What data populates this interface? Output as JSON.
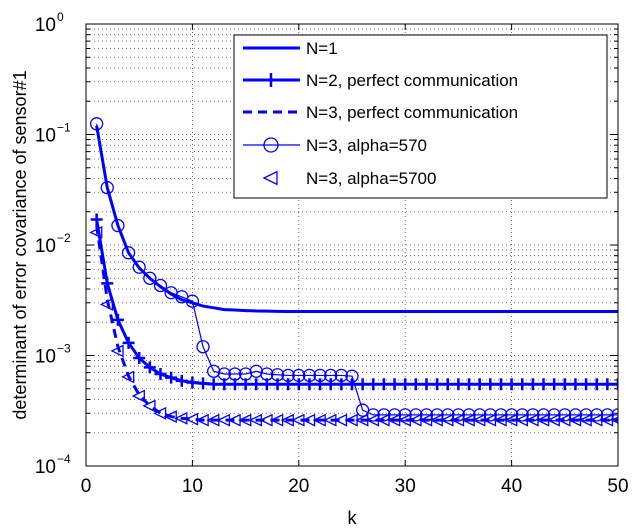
{
  "chart_data": {
    "type": "line",
    "xlabel": "k",
    "ylabel": "determinant of error covariance of sensor#1",
    "xlim": [
      0,
      50
    ],
    "ylim": [
      0.0001,
      1
    ],
    "yscale": "log",
    "grid": true,
    "legend_position": "top-right",
    "x_ticks": [
      "0",
      "10",
      "20",
      "30",
      "40",
      "50"
    ],
    "y_tick_base": "10",
    "y_tick_exponents": [
      "−4",
      "−3",
      "−2",
      "−1",
      "0"
    ],
    "color": "#0000ff",
    "x": [
      1,
      2,
      3,
      4,
      5,
      6,
      7,
      8,
      9,
      10,
      11,
      12,
      13,
      14,
      15,
      16,
      17,
      18,
      19,
      20,
      21,
      22,
      23,
      24,
      25,
      26,
      27,
      28,
      29,
      30,
      31,
      32,
      33,
      34,
      35,
      36,
      37,
      38,
      39,
      40,
      41,
      42,
      43,
      44,
      45,
      46,
      47,
      48,
      49,
      50
    ],
    "series": [
      {
        "name": "N=1",
        "style": "solid-thick",
        "values": [
          0.12,
          0.033,
          0.015,
          0.0085,
          0.0062,
          0.005,
          0.0042,
          0.0036,
          0.0032,
          0.003,
          0.0028,
          0.0027,
          0.0026,
          0.00258,
          0.00255,
          0.00253,
          0.00252,
          0.00251,
          0.0025,
          0.0025,
          0.0025,
          0.0025,
          0.0025,
          0.0025,
          0.0025,
          0.0025,
          0.0025,
          0.0025,
          0.0025,
          0.0025,
          0.0025,
          0.0025,
          0.0025,
          0.0025,
          0.0025,
          0.0025,
          0.0025,
          0.0025,
          0.0025,
          0.0025,
          0.0025,
          0.0025,
          0.0025,
          0.0025,
          0.0025,
          0.0025,
          0.0025,
          0.0025,
          0.0025,
          0.0025
        ]
      },
      {
        "name": "N=2, perfect communication",
        "style": "solid-plus",
        "values": [
          0.017,
          0.0045,
          0.0021,
          0.0013,
          0.00095,
          0.00078,
          0.00068,
          0.00063,
          0.00059,
          0.00057,
          0.00056,
          0.00055,
          0.00055,
          0.00055,
          0.00055,
          0.00055,
          0.00055,
          0.00055,
          0.00055,
          0.00055,
          0.00055,
          0.00055,
          0.00055,
          0.00055,
          0.00055,
          0.00055,
          0.00055,
          0.00055,
          0.00055,
          0.00055,
          0.00055,
          0.00055,
          0.00055,
          0.00055,
          0.00055,
          0.00055,
          0.00055,
          0.00055,
          0.00055,
          0.00055,
          0.00055,
          0.00055,
          0.00055,
          0.00055,
          0.00055,
          0.00055,
          0.00055,
          0.00055,
          0.00055,
          0.00055
        ]
      },
      {
        "name": "N=3, perfect communication",
        "style": "dashed",
        "values": [
          0.015,
          0.0032,
          0.0012,
          0.00065,
          0.00044,
          0.00035,
          0.0003,
          0.00028,
          0.00027,
          0.000265,
          0.00026,
          0.00026,
          0.00026,
          0.00026,
          0.00026,
          0.00026,
          0.00026,
          0.00026,
          0.00026,
          0.00026,
          0.00026,
          0.00026,
          0.00026,
          0.00026,
          0.00026,
          0.00026,
          0.00026,
          0.00026,
          0.00026,
          0.00026,
          0.00026,
          0.00026,
          0.00026,
          0.00026,
          0.00026,
          0.00026,
          0.00026,
          0.00026,
          0.00026,
          0.00026,
          0.00026,
          0.00026,
          0.00026,
          0.00026,
          0.00026,
          0.00026,
          0.00026,
          0.00026,
          0.00026,
          0.00026
        ]
      },
      {
        "name": "N=3, alpha=570",
        "style": "solid-circle",
        "values": [
          0.125,
          0.033,
          0.015,
          0.0085,
          0.0063,
          0.005,
          0.0043,
          0.0037,
          0.0034,
          0.0031,
          0.0012,
          0.00072,
          0.00068,
          0.00068,
          0.00068,
          0.00072,
          0.00068,
          0.00067,
          0.00066,
          0.00066,
          0.00066,
          0.00066,
          0.00066,
          0.00066,
          0.00065,
          0.00032,
          0.00029,
          0.00029,
          0.00029,
          0.00029,
          0.00029,
          0.00029,
          0.00029,
          0.00029,
          0.00029,
          0.00029,
          0.00029,
          0.00029,
          0.00029,
          0.00029,
          0.00029,
          0.00029,
          0.00029,
          0.00029,
          0.00029,
          0.00029,
          0.00029,
          0.00029,
          0.00029,
          0.00029
        ]
      },
      {
        "name": "N=3, alpha=5700",
        "style": "triangle",
        "values": [
          0.013,
          0.0029,
          0.0011,
          0.00064,
          0.00043,
          0.00035,
          0.0003,
          0.00028,
          0.00027,
          0.000265,
          0.00026,
          0.00026,
          0.00026,
          0.00026,
          0.00026,
          0.00026,
          0.00026,
          0.00026,
          0.00026,
          0.00026,
          0.00026,
          0.00026,
          0.00026,
          0.00026,
          0.00026,
          0.00026,
          0.00026,
          0.00026,
          0.00026,
          0.00026,
          0.00026,
          0.00026,
          0.00026,
          0.00026,
          0.00026,
          0.00026,
          0.00026,
          0.00026,
          0.00026,
          0.00026,
          0.00026,
          0.00026,
          0.00026,
          0.00026,
          0.00026,
          0.00026,
          0.00026,
          0.00026,
          0.00026,
          0.00026
        ]
      }
    ]
  }
}
